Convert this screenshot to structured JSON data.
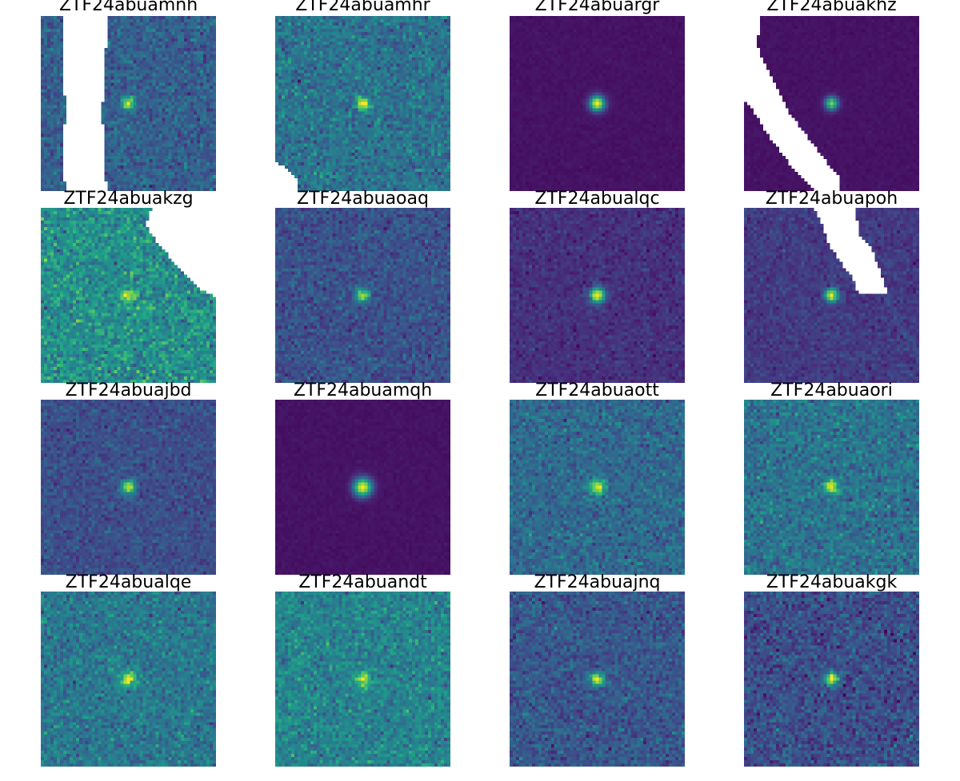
{
  "colormap": "viridis",
  "background_color": "#ffffff",
  "mask_color": "#ffffff",
  "panels": [
    {
      "title": "ZTF24abuamnh",
      "background_level": 0.3,
      "noise": 0.07,
      "source_brightness": 0.65,
      "source_sharpness": 0.7,
      "masked": true
    },
    {
      "title": "ZTF24abuamhr",
      "background_level": 0.38,
      "noise": 0.08,
      "source_brightness": 0.62,
      "source_sharpness": 0.7,
      "masked": true
    },
    {
      "title": "ZTF24abuargr",
      "background_level": 0.05,
      "noise": 0.01,
      "source_brightness": 0.95,
      "source_sharpness": 0.6,
      "masked": false
    },
    {
      "title": "ZTF24abuakhz",
      "background_level": 0.05,
      "noise": 0.01,
      "source_brightness": 0.75,
      "source_sharpness": 0.7,
      "masked": true
    },
    {
      "title": "ZTF24abuakzg",
      "background_level": 0.5,
      "noise": 0.1,
      "source_brightness": 0.45,
      "source_sharpness": 0.7,
      "masked": true
    },
    {
      "title": "ZTF24abuaoaq",
      "background_level": 0.25,
      "noise": 0.06,
      "source_brightness": 0.7,
      "source_sharpness": 0.7,
      "masked": false
    },
    {
      "title": "ZTF24abualqc",
      "background_level": 0.14,
      "noise": 0.04,
      "source_brightness": 0.85,
      "source_sharpness": 0.6,
      "masked": false
    },
    {
      "title": "ZTF24abuapoh",
      "background_level": 0.17,
      "noise": 0.04,
      "source_brightness": 0.8,
      "source_sharpness": 0.7,
      "masked": true
    },
    {
      "title": "ZTF24abuajbd",
      "background_level": 0.24,
      "noise": 0.05,
      "source_brightness": 0.72,
      "source_sharpness": 0.7,
      "masked": false
    },
    {
      "title": "ZTF24abuamqh",
      "background_level": 0.05,
      "noise": 0.01,
      "source_brightness": 0.95,
      "source_sharpness": 0.5,
      "masked": false
    },
    {
      "title": "ZTF24abuaott",
      "background_level": 0.34,
      "noise": 0.07,
      "source_brightness": 0.63,
      "source_sharpness": 0.6,
      "masked": false
    },
    {
      "title": "ZTF24abuaori",
      "background_level": 0.38,
      "noise": 0.08,
      "source_brightness": 0.6,
      "source_sharpness": 0.7,
      "masked": false
    },
    {
      "title": "ZTF24abualqe",
      "background_level": 0.4,
      "noise": 0.08,
      "source_brightness": 0.58,
      "source_sharpness": 0.6,
      "masked": false
    },
    {
      "title": "ZTF24abuandt",
      "background_level": 0.45,
      "noise": 0.08,
      "source_brightness": 0.52,
      "source_sharpness": 0.7,
      "masked": false
    },
    {
      "title": "ZTF24abuajnq",
      "background_level": 0.27,
      "noise": 0.07,
      "source_brightness": 0.7,
      "source_sharpness": 0.7,
      "masked": false
    },
    {
      "title": "ZTF24abuakgk",
      "background_level": 0.24,
      "noise": 0.08,
      "source_brightness": 0.72,
      "source_sharpness": 0.7,
      "masked": false
    }
  ]
}
